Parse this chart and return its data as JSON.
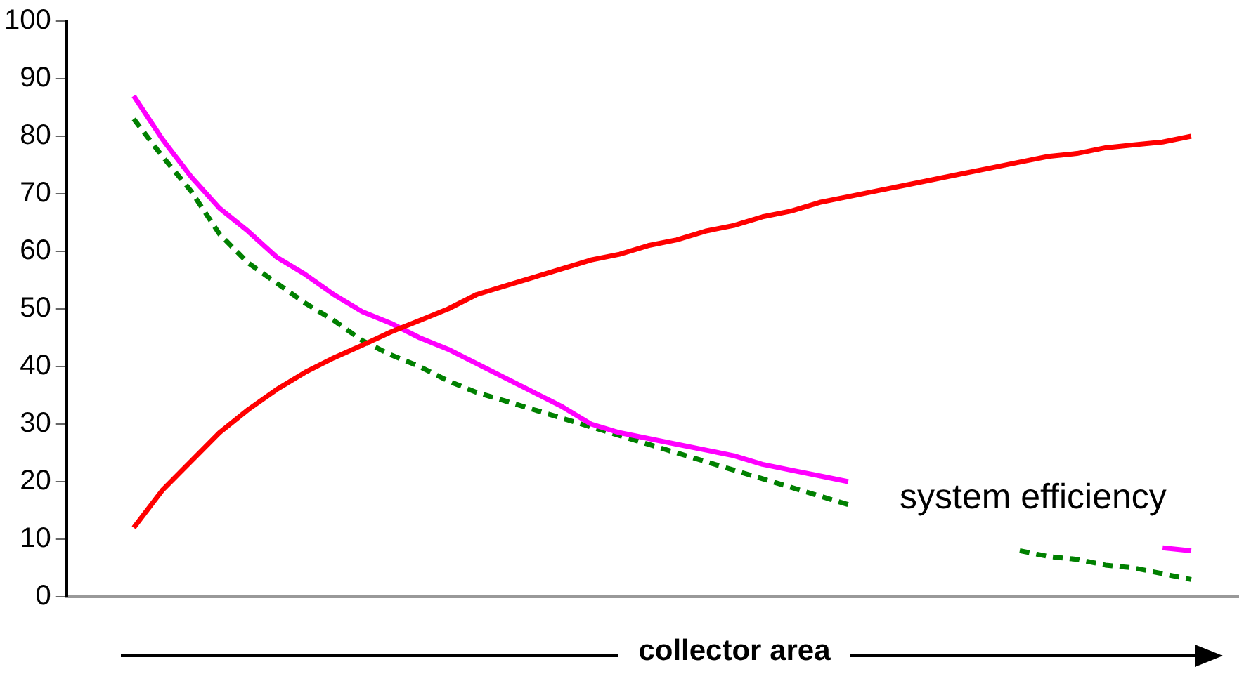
{
  "chart_data": {
    "type": "line",
    "xlabel": "collector area",
    "annotations": [
      "system efficiency"
    ],
    "categories": [
      null,
      null,
      null,
      null,
      null,
      null,
      null,
      null,
      null,
      null,
      null,
      null,
      null,
      null,
      null,
      null,
      null,
      null,
      null,
      null,
      null,
      null,
      null,
      null,
      null,
      null,
      null,
      null,
      null,
      null,
      null,
      null,
      null,
      null,
      null,
      null,
      null,
      null
    ],
    "series": [
      {
        "color": "#ff0000",
        "line_style": "solid",
        "values": [
          12,
          18.5,
          23.5,
          28.5,
          32.5,
          36,
          39,
          41.5,
          43.7,
          46,
          48,
          50,
          52.5,
          54,
          55.5,
          57,
          58.5,
          59.5,
          61,
          62,
          63.5,
          64.5,
          66,
          67,
          68.5,
          69.5,
          70.5,
          71.5,
          72.5,
          73.5,
          74.5,
          75.5,
          76.5,
          77,
          78,
          78.5,
          79,
          80
        ]
      },
      {
        "color": "#ff00ff",
        "line_style": "solid",
        "values": [
          87,
          79.5,
          73,
          67.5,
          63.5,
          59,
          56,
          52.5,
          49.5,
          47.5,
          45,
          43,
          40.5,
          38,
          35.5,
          33,
          30,
          28.5,
          27.5,
          26.5,
          25.5,
          24.5,
          23,
          22,
          21,
          20,
          null,
          null,
          null,
          null,
          null,
          null,
          null,
          null,
          null,
          null,
          8.5,
          8
        ]
      },
      {
        "color": "#008000",
        "line_style": "dashed",
        "values": [
          83,
          76.5,
          70.5,
          63,
          58,
          54.5,
          51,
          48,
          44.5,
          42,
          40,
          37.5,
          35.5,
          34,
          32.5,
          31,
          29.5,
          28,
          26.5,
          25,
          23.5,
          22,
          20.5,
          19,
          17.5,
          16,
          null,
          null,
          null,
          null,
          null,
          8,
          7,
          6.5,
          5.5,
          5,
          4,
          3
        ]
      }
    ],
    "ylim": [
      0,
      100
    ],
    "yticks": [
      0,
      10,
      20,
      30,
      40,
      50,
      60,
      70,
      80,
      90,
      100
    ],
    "grid": false,
    "legend": false,
    "tick_labels": "y",
    "marker": "none"
  }
}
